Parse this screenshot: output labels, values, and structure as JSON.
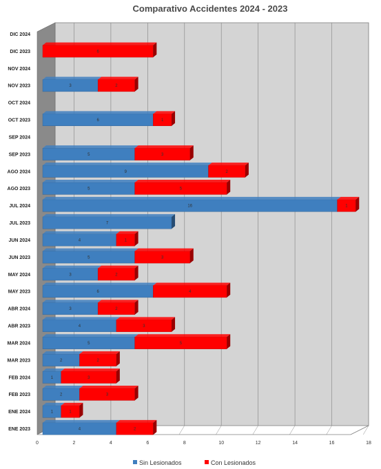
{
  "chart_data": {
    "type": "bar",
    "orientation": "horizontal",
    "stacked": true,
    "title": "Comparativo Accidentes 2024 - 2023",
    "xlabel": "",
    "ylabel": "",
    "xlim": [
      0,
      18
    ],
    "xticks": [
      "0",
      "2",
      "4",
      "6",
      "8",
      "10",
      "12",
      "14",
      "16",
      "18"
    ],
    "grid": true,
    "legend_position": "bottom",
    "categories": [
      "DIC 2024",
      "DIC 2023",
      "NOV 2024",
      "NOV 2023",
      "OCT 2024",
      "OCT 2023",
      "SEP 2024",
      "SEP 2023",
      "AGO 2024",
      "AGO 2023",
      "JUL 2024",
      "JUL 2023",
      "JUN 2024",
      "JUN 2023",
      "MAY 2024",
      "MAY 2023",
      "ABR 2024",
      "ABR 2023",
      "MAR 2024",
      "MAR 2023",
      "FEB 2024",
      "FEB 2023",
      "ENE 2024",
      "ENE 2023"
    ],
    "series": [
      {
        "name": "Sin Lesionados",
        "color": "#3f7fbf",
        "values": [
          null,
          null,
          null,
          3,
          null,
          6,
          null,
          5,
          9,
          5,
          16,
          7,
          4,
          5,
          3,
          6,
          3,
          4,
          5,
          2,
          1,
          2,
          1,
          4
        ]
      },
      {
        "name": "Con Lesionados",
        "color": "#ff0000",
        "values": [
          null,
          6,
          null,
          2,
          null,
          1,
          null,
          3,
          2,
          5,
          1,
          null,
          1,
          3,
          2,
          4,
          2,
          3,
          5,
          2,
          3,
          3,
          1,
          2
        ]
      }
    ]
  }
}
